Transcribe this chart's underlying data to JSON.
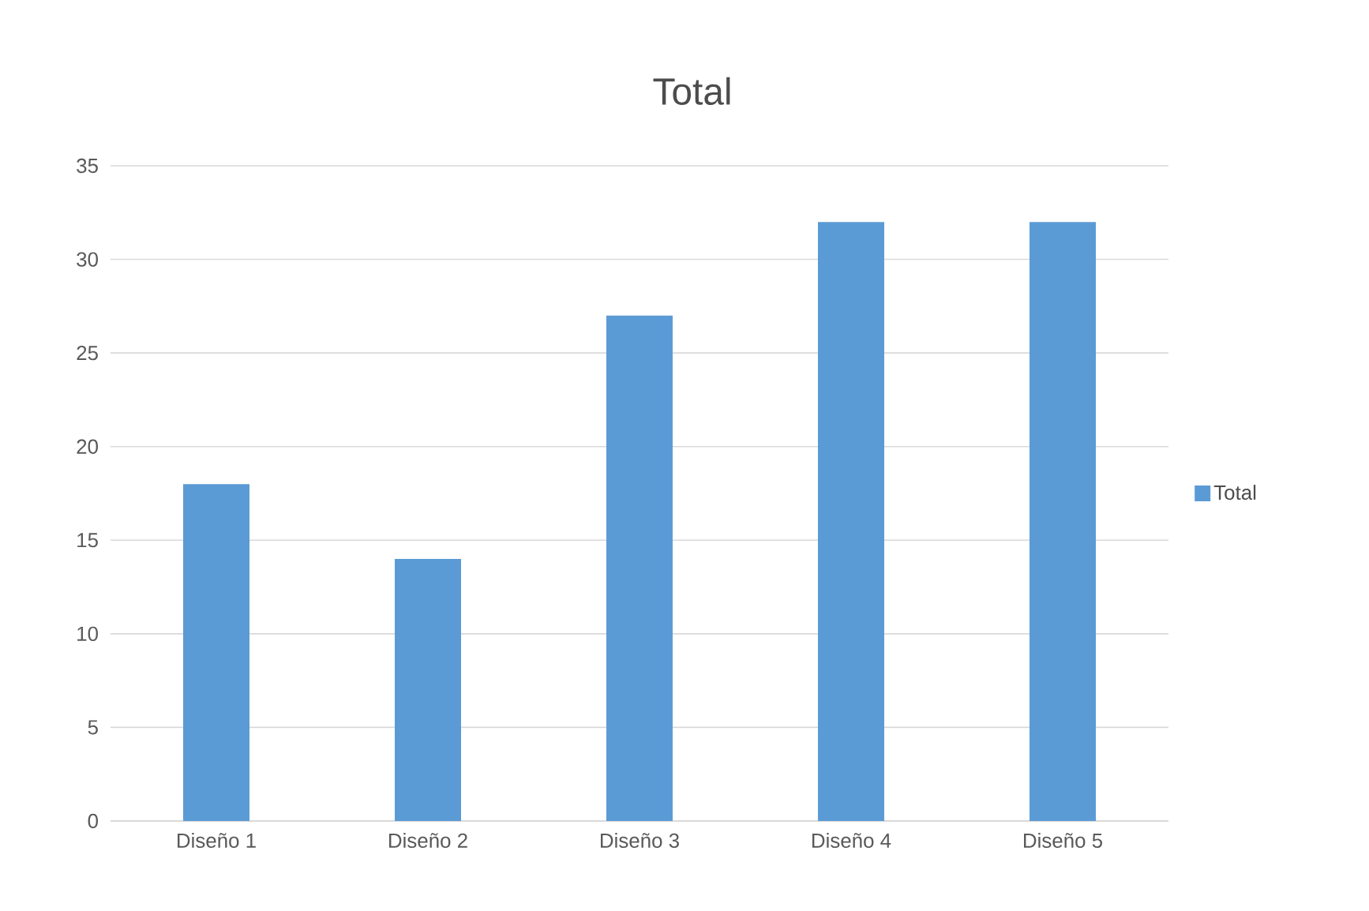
{
  "chart_data": {
    "type": "bar",
    "title": "Total",
    "categories": [
      "Diseño 1",
      "Diseño 2",
      "Diseño 3",
      "Diseño 4",
      "Diseño 5"
    ],
    "series": [
      {
        "name": "Total",
        "color": "#5b9bd5",
        "values": [
          18,
          14,
          27,
          32,
          32
        ]
      }
    ],
    "ylim": [
      0,
      35
    ],
    "yticks": [
      0,
      5,
      10,
      15,
      20,
      25,
      30,
      35
    ],
    "grid": "y",
    "legend": "right"
  }
}
